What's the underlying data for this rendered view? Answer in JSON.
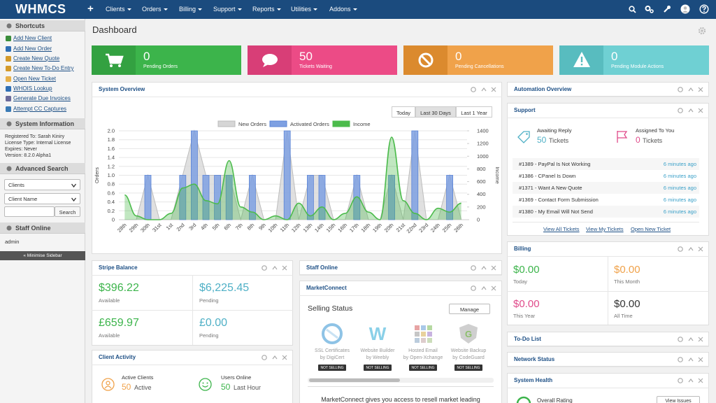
{
  "nav": {
    "logo": "WHMCS",
    "plus": "+",
    "menu": [
      "Clients",
      "Orders",
      "Billing",
      "Support",
      "Reports",
      "Utilities",
      "Addons"
    ]
  },
  "sidebar": {
    "shortcuts_title": "Shortcuts",
    "shortcuts": [
      "Add New Client",
      "Add New Order",
      "Create New Quote",
      "Create New To-Do Entry",
      "Open New Ticket",
      "WHOIS Lookup",
      "Generate Due Invoices",
      "Attempt CC Captures"
    ],
    "sysinfo_title": "System Information",
    "sysinfo": [
      "Registered To: Sarah Kiniry",
      "License Type: Internal License",
      "Expires: Never",
      "Version: 8.2.0 Alpha1"
    ],
    "search_title": "Advanced Search",
    "search_type": "Clients",
    "search_field": "Client Name",
    "search_button": "Search",
    "staff_title": "Staff Online",
    "staff": [
      "admin"
    ],
    "minimise": "« Minimise Sidebar"
  },
  "header": {
    "title": "Dashboard"
  },
  "tiles": [
    {
      "value": "0",
      "label": "Pending Orders"
    },
    {
      "value": "50",
      "label": "Tickets Waiting"
    },
    {
      "value": "0",
      "label": "Pending Cancellations"
    },
    {
      "value": "0",
      "label": "Pending Module Actions"
    }
  ],
  "system_overview": {
    "title": "System Overview",
    "ranges": [
      "Today",
      "Last 30 Days",
      "Last 1 Year"
    ]
  },
  "chart_data": {
    "type": "combo",
    "ylabel": "Orders",
    "y2label": "Income",
    "categories": [
      "28th",
      "29th",
      "30th",
      "31st",
      "1st",
      "2nd",
      "3rd",
      "4th",
      "5th",
      "6th",
      "7th",
      "8th",
      "9th",
      "10th",
      "11th",
      "12th",
      "13th",
      "14th",
      "15th",
      "16th",
      "17th",
      "18th",
      "19th",
      "20th",
      "21st",
      "22nd",
      "23rd",
      "24th",
      "25th",
      "26th"
    ],
    "series": [
      {
        "name": "New Orders",
        "type": "area",
        "color": "#d6d6d6",
        "values": [
          0,
          0,
          1,
          0,
          0,
          1,
          2,
          1,
          1,
          1,
          0,
          1,
          0,
          0,
          2,
          0,
          1,
          1,
          0,
          0,
          1,
          0,
          0,
          1,
          0,
          2,
          0,
          0,
          1,
          0
        ]
      },
      {
        "name": "Activated Orders",
        "type": "bar",
        "color": "#7ea0e2",
        "values": [
          0,
          0,
          1,
          0,
          0,
          1,
          2,
          1,
          1,
          1,
          0,
          1,
          0,
          0,
          2,
          0,
          1,
          1,
          0,
          0,
          1,
          0,
          0,
          1,
          0,
          2,
          0,
          0,
          1,
          0
        ]
      },
      {
        "name": "Income",
        "type": "area",
        "color": "#4cbb4c",
        "axis": "y2",
        "values": [
          390,
          60,
          0,
          0,
          100,
          500,
          560,
          300,
          250,
          930,
          200,
          120,
          0,
          60,
          0,
          260,
          60,
          200,
          0,
          100,
          360,
          120,
          0,
          1300,
          300,
          100,
          0,
          180,
          120,
          260
        ]
      }
    ],
    "ylim": [
      0,
      2
    ],
    "yticks": [
      0,
      0.2,
      0.4,
      0.6,
      0.8,
      {
        "value": 1,
        "label": "1.0"
      },
      1.2,
      1.4,
      1.6,
      1.8,
      {
        "value": 2,
        "label": "2.0"
      }
    ],
    "y2lim": [
      0,
      1400
    ],
    "y2ticks": [
      0,
      200,
      400,
      600,
      800,
      1000,
      1200,
      1400
    ],
    "grid": true
  },
  "stripe": {
    "title": "Stripe Balance",
    "cells": [
      {
        "amount": "$396.22",
        "label": "Available"
      },
      {
        "amount": "$6,225.45",
        "label": "Pending"
      },
      {
        "amount": "£659.97",
        "label": "Available"
      },
      {
        "amount": "£0.00",
        "label": "Pending"
      }
    ]
  },
  "client_activity": {
    "title": "Client Activity",
    "items": [
      {
        "label": "Active Clients",
        "value": "50",
        "unit": "Active"
      },
      {
        "label": "Users Online",
        "value": "50",
        "unit": "Last Hour"
      }
    ]
  },
  "staff_online": {
    "title": "Staff Online"
  },
  "marketconnect": {
    "title": "MarketConnect",
    "status_title": "Selling Status",
    "manage": "Manage",
    "products": [
      {
        "name": "SSL Certificates",
        "by": "by DigiCert",
        "status": "NOT SELLING"
      },
      {
        "name": "Website Builder",
        "by": "by Weebly",
        "status": "NOT SELLING"
      },
      {
        "name": "Hosted Email",
        "by": "by Open-Xchange",
        "status": "NOT SELLING"
      },
      {
        "name": "Website Backup",
        "by": "by CodeGuard",
        "status": "NOT SELLING"
      }
    ],
    "blurb": "MarketConnect gives you access to resell market leading"
  },
  "automation": {
    "title": "Automation Overview"
  },
  "support": {
    "title": "Support",
    "awaiting": {
      "label": "Awaiting Reply",
      "value": "50",
      "unit": "Tickets"
    },
    "assigned": {
      "label": "Assigned To You",
      "value": "0",
      "unit": "Tickets"
    },
    "tickets": [
      {
        "subject": "#1389 - PayPal Is Not Working",
        "time": "6 minutes ago"
      },
      {
        "subject": "#1386 - CPanel Is Down",
        "time": "6 minutes ago"
      },
      {
        "subject": "#1371 - Want A New Quote",
        "time": "6 minutes ago"
      },
      {
        "subject": "#1369 - Contact Form Submission",
        "time": "6 minutes ago"
      },
      {
        "subject": "#1380 - My Email Will Not Send",
        "time": "6 minutes ago"
      }
    ],
    "links": [
      "View All Tickets",
      "View My Tickets",
      "Open New Ticket"
    ]
  },
  "billing": {
    "title": "Billing",
    "cells": [
      {
        "amount": "$0.00",
        "label": "Today"
      },
      {
        "amount": "$0.00",
        "label": "This Month"
      },
      {
        "amount": "$0.00",
        "label": "This Year"
      },
      {
        "amount": "$0.00",
        "label": "All Time"
      }
    ]
  },
  "todo": {
    "title": "To-Do List"
  },
  "network": {
    "title": "Network Status"
  },
  "health": {
    "title": "System Health",
    "rating": "Overall Rating",
    "button": "View Issues"
  }
}
